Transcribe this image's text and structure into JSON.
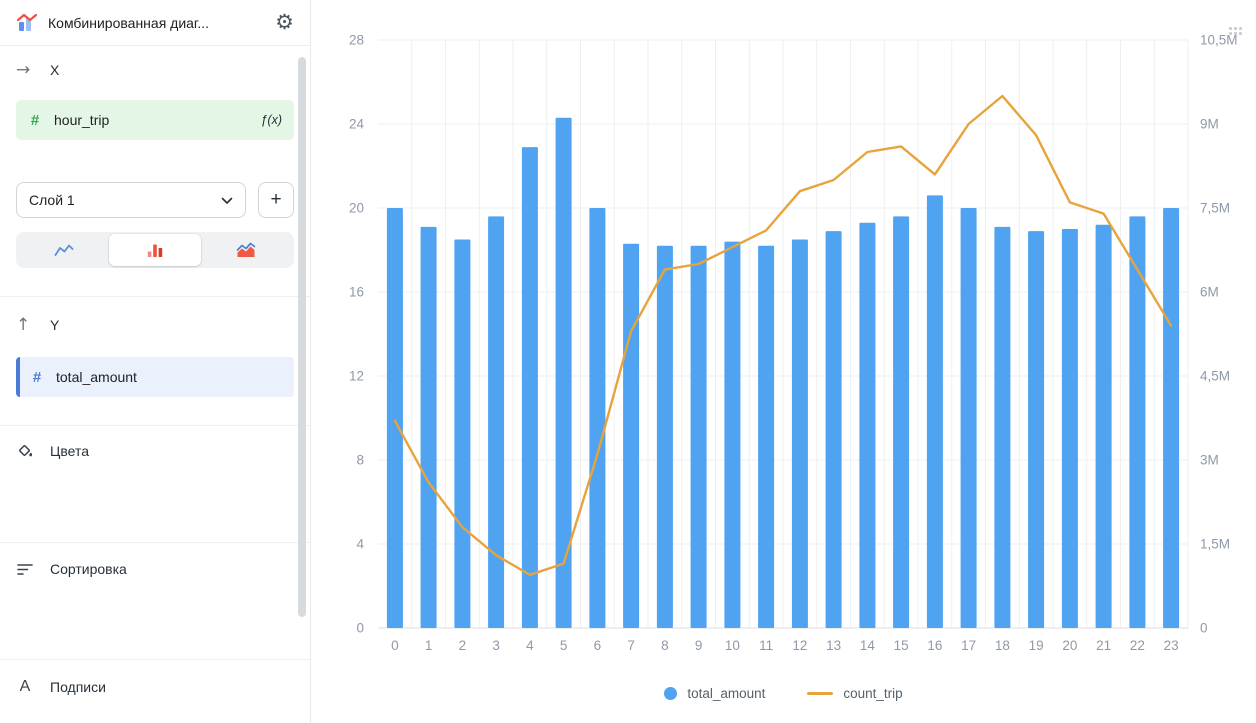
{
  "app": {
    "title": "Комбинированная диаг..."
  },
  "icons": {
    "gear": "⚙",
    "arrow_right": "→",
    "arrow_up": "↑",
    "hash": "#",
    "plus": "+",
    "formula": "ƒ(x)",
    "labels_letter": "A"
  },
  "sidebar": {
    "x_section_label": "X",
    "x_field": "hour_trip",
    "layer_select": "Слой 1",
    "y_section_label": "Y",
    "y_field": "total_amount",
    "colors_label": "Цвета",
    "sorting_label": "Сортировка",
    "labels_label": "Подписи"
  },
  "chart_data": {
    "type": "combo",
    "categories": [
      "0",
      "1",
      "2",
      "3",
      "4",
      "5",
      "6",
      "7",
      "8",
      "9",
      "10",
      "11",
      "12",
      "13",
      "14",
      "15",
      "16",
      "17",
      "18",
      "19",
      "20",
      "21",
      "22",
      "23"
    ],
    "series": [
      {
        "name": "total_amount",
        "type": "bar",
        "axis": "left",
        "color": "#4FA3F0",
        "values": [
          20.0,
          19.1,
          18.5,
          19.6,
          22.9,
          24.3,
          20.0,
          18.3,
          18.2,
          18.2,
          18.4,
          18.2,
          18.5,
          18.9,
          19.3,
          19.6,
          20.6,
          20.0,
          19.1,
          18.9,
          19.0,
          19.2,
          19.6,
          20.0
        ]
      },
      {
        "name": "count_trip",
        "type": "line",
        "axis": "right",
        "unit": "M",
        "color": "#E7A43C",
        "values": [
          3.7,
          2.6,
          1.8,
          1.3,
          0.95,
          1.15,
          3.1,
          5.3,
          6.4,
          6.5,
          6.8,
          7.1,
          7.8,
          8.0,
          8.5,
          8.6,
          8.1,
          9.0,
          9.5,
          8.8,
          7.6,
          7.4,
          6.4,
          5.4
        ]
      }
    ],
    "left_axis": {
      "min": 0,
      "max": 28,
      "tick_values": [
        0,
        4,
        8,
        12,
        16,
        20,
        24,
        28
      ],
      "tick_labels": [
        "0",
        "4",
        "8",
        "12",
        "16",
        "20",
        "24",
        "28"
      ]
    },
    "right_axis": {
      "min": 0,
      "max": 10.5,
      "tick_values": [
        0,
        1.5,
        3,
        4.5,
        6,
        7.5,
        9,
        10.5
      ],
      "tick_labels": [
        "0",
        "1,5M",
        "3M",
        "4,5M",
        "6M",
        "7,5M",
        "9M",
        "10,5M"
      ]
    },
    "grid": true,
    "legend_position": "bottom",
    "colors": {
      "grid": "#EDEFF2",
      "axis_line": "#D8DCE1",
      "tick_label": "#8F99A8"
    }
  }
}
